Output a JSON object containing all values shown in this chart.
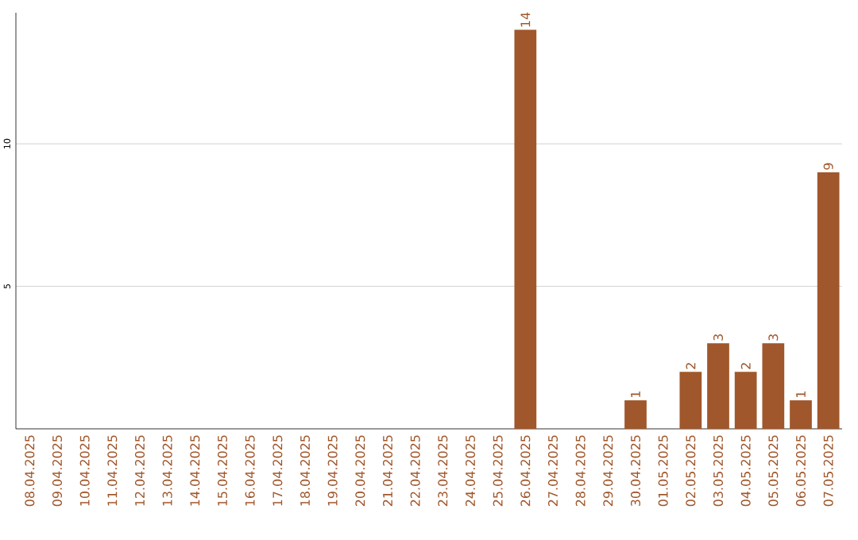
{
  "chart_data": {
    "type": "bar",
    "categories": [
      "08.04.2025",
      "09.04.2025",
      "10.04.2025",
      "11.04.2025",
      "12.04.2025",
      "13.04.2025",
      "14.04.2025",
      "15.04.2025",
      "16.04.2025",
      "17.04.2025",
      "18.04.2025",
      "19.04.2025",
      "20.04.2025",
      "21.04.2025",
      "22.04.2025",
      "23.04.2025",
      "24.04.2025",
      "25.04.2025",
      "26.04.2025",
      "27.04.2025",
      "28.04.2025",
      "29.04.2025",
      "30.04.2025",
      "01.05.2025",
      "02.05.2025",
      "03.05.2025",
      "04.05.2025",
      "05.05.2025",
      "06.05.2025",
      "07.05.2025"
    ],
    "values": [
      0,
      0,
      0,
      0,
      0,
      0,
      0,
      0,
      0,
      0,
      0,
      0,
      0,
      0,
      0,
      0,
      0,
      0,
      14,
      0,
      0,
      0,
      1,
      0,
      2,
      3,
      2,
      3,
      1,
      9
    ],
    "value_labels": [
      null,
      null,
      null,
      null,
      null,
      null,
      null,
      null,
      null,
      null,
      null,
      null,
      null,
      null,
      null,
      null,
      null,
      null,
      "14",
      null,
      null,
      null,
      "1",
      null,
      "2",
      "3",
      "2",
      "3",
      "1",
      "9"
    ],
    "color": "#a0572b",
    "ylim": [
      0,
      14.6
    ],
    "yticks": [
      5,
      10
    ],
    "grid": "y"
  }
}
